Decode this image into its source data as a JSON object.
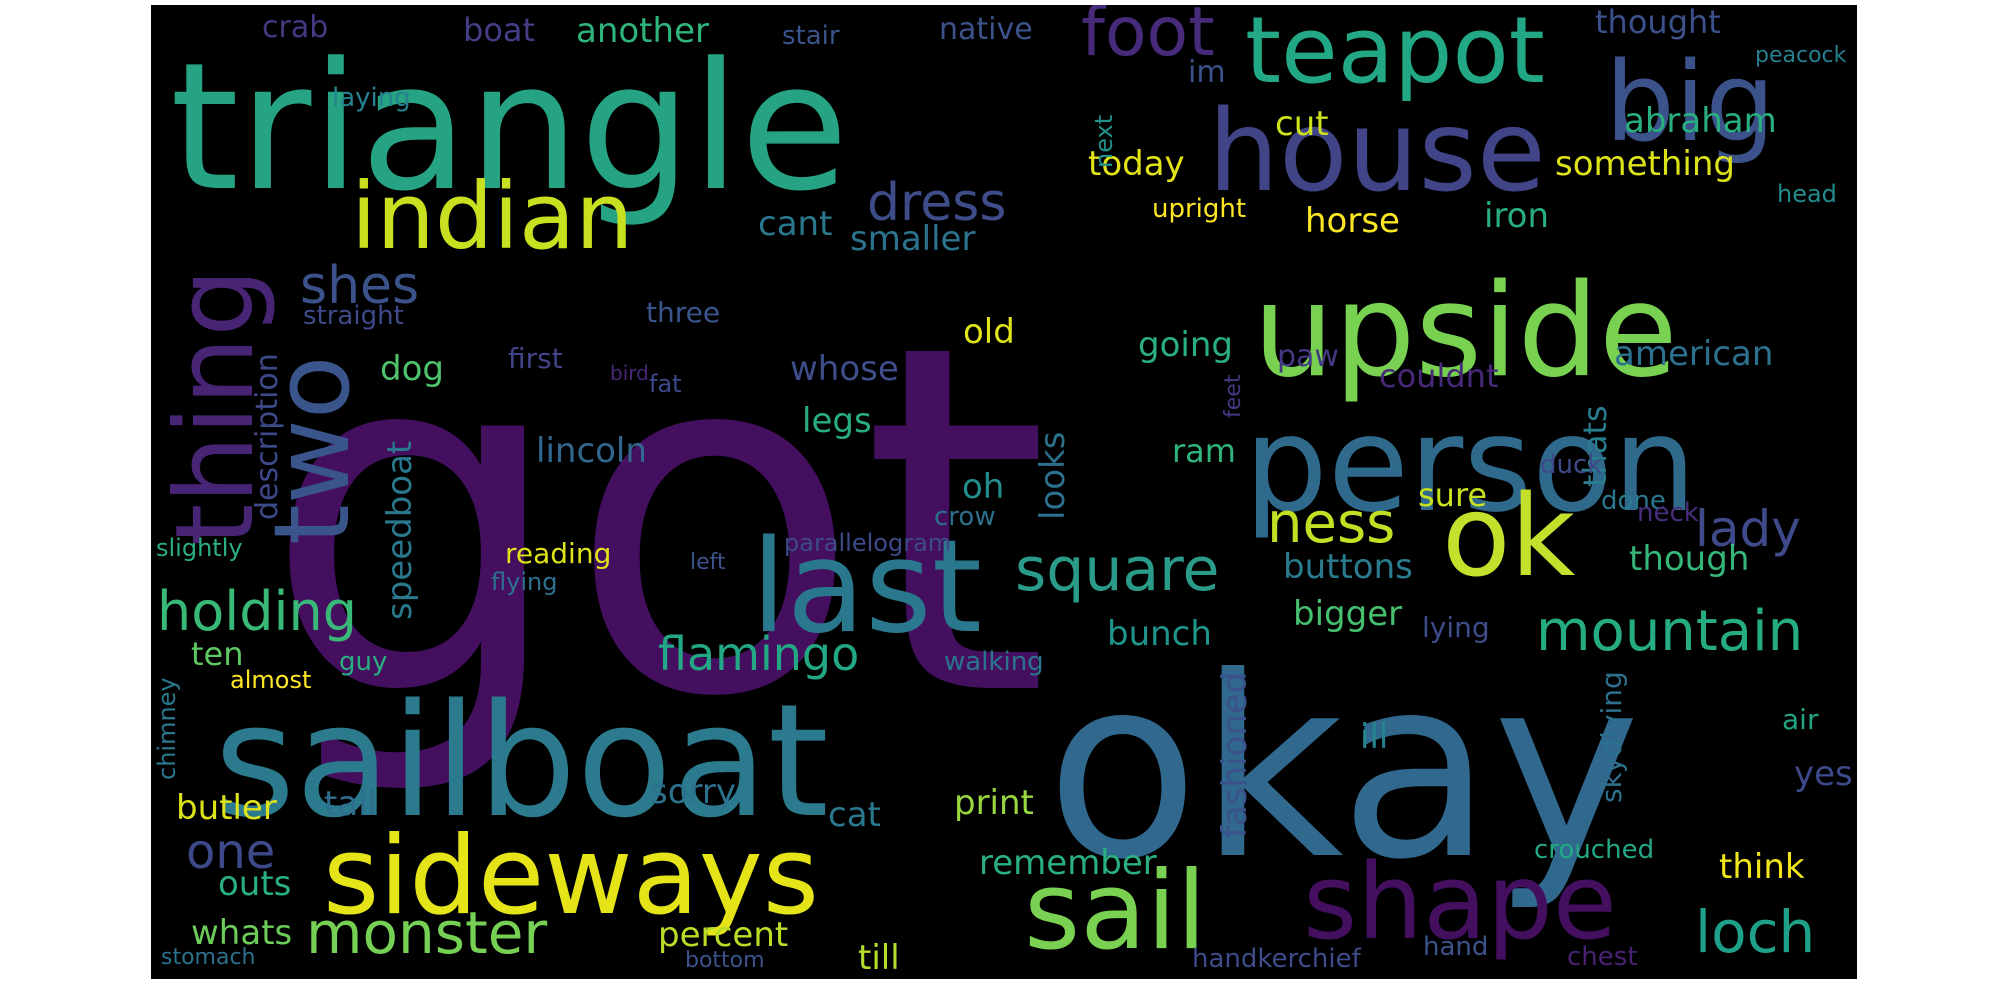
{
  "words": [
    {
      "text": "got",
      "color": "#440f5f"
    },
    {
      "text": "okay",
      "color": "#30688e"
    },
    {
      "text": "triangle",
      "color": "#25a383"
    },
    {
      "text": "sailboat",
      "color": "#2b7a8e"
    },
    {
      "text": "upside",
      "color": "#78d151"
    },
    {
      "text": "person",
      "color": "#2f6a8d"
    },
    {
      "text": "sideways",
      "color": "#e4e418"
    },
    {
      "text": "house",
      "color": "#414487"
    },
    {
      "text": "teapot",
      "color": "#22a884"
    },
    {
      "text": "ok",
      "color": "#c4e02d"
    },
    {
      "text": "last",
      "color": "#2a788e"
    },
    {
      "text": "indian",
      "color": "#c8e020"
    },
    {
      "text": "two",
      "color": "#3a548c"
    },
    {
      "text": "thing",
      "color": "#482474"
    },
    {
      "text": "big",
      "color": "#3b528b"
    },
    {
      "text": "shape",
      "color": "#440f5f"
    },
    {
      "text": "sail",
      "color": "#7ad151"
    },
    {
      "text": "foot",
      "color": "#472a7a"
    },
    {
      "text": "mountain",
      "color": "#25ac82"
    },
    {
      "text": "square",
      "color": "#2a9b88"
    },
    {
      "text": "holding",
      "color": "#38b977"
    },
    {
      "text": "ness",
      "color": "#c2df23"
    },
    {
      "text": "monster",
      "color": "#75d054"
    },
    {
      "text": "loch",
      "color": "#1fa088"
    },
    {
      "text": "lady",
      "color": "#3e4a89"
    },
    {
      "text": "dress",
      "color": "#3e4c8a"
    },
    {
      "text": "flamingo",
      "color": "#22a884"
    },
    {
      "text": "shes",
      "color": "#3b528b"
    },
    {
      "text": "one",
      "color": "#3e4989"
    },
    {
      "text": "something",
      "color": "#dde318"
    },
    {
      "text": "abraham",
      "color": "#29af7f"
    },
    {
      "text": "today",
      "color": "#e2e418"
    },
    {
      "text": "american",
      "color": "#2c718e"
    },
    {
      "text": "lincoln",
      "color": "#31678e"
    },
    {
      "text": "going",
      "color": "#2ab07f"
    },
    {
      "text": "buttons",
      "color": "#2a7b8e"
    },
    {
      "text": "whose",
      "color": "#3d4e8a"
    },
    {
      "text": "legs",
      "color": "#27ad81"
    },
    {
      "text": "old",
      "color": "#dfe318"
    },
    {
      "text": "smaller",
      "color": "#2c738e"
    },
    {
      "text": "bigger",
      "color": "#46c06f"
    },
    {
      "text": "bunch",
      "color": "#1f958b"
    },
    {
      "text": "though",
      "color": "#35b779"
    },
    {
      "text": "horse",
      "color": "#fde725"
    },
    {
      "text": "iron",
      "color": "#29af7f"
    },
    {
      "text": "thought",
      "color": "#3c508b"
    },
    {
      "text": "another",
      "color": "#2fb47c"
    },
    {
      "text": "boat",
      "color": "#433e85"
    },
    {
      "text": "crab",
      "color": "#443983"
    },
    {
      "text": "native",
      "color": "#3b528b"
    },
    {
      "text": "stair",
      "color": "#3a548c"
    },
    {
      "text": "peacock",
      "color": "#277f8e"
    },
    {
      "text": "laying",
      "color": "#26828e"
    },
    {
      "text": "next",
      "color": "#21918c"
    },
    {
      "text": "im",
      "color": "#3b528b"
    },
    {
      "text": "cut",
      "color": "#cde11d"
    },
    {
      "text": "upright",
      "color": "#fde725"
    },
    {
      "text": "head",
      "color": "#228c8d"
    },
    {
      "text": "cant",
      "color": "#2a788e"
    },
    {
      "text": "description",
      "color": "#3e4989"
    },
    {
      "text": "straight",
      "color": "#3e4a89"
    },
    {
      "text": "three",
      "color": "#3a548c"
    },
    {
      "text": "bird",
      "color": "#482777"
    },
    {
      "text": "first",
      "color": "#414487"
    },
    {
      "text": "fat",
      "color": "#3e4989"
    },
    {
      "text": "dog",
      "color": "#4ec36b"
    },
    {
      "text": "paw",
      "color": "#443983"
    },
    {
      "text": "couldnt",
      "color": "#482878"
    },
    {
      "text": "thats",
      "color": "#287d8e"
    },
    {
      "text": "feet",
      "color": "#453781"
    },
    {
      "text": "speedboat",
      "color": "#2a788e"
    },
    {
      "text": "looks",
      "color": "#2d708e"
    },
    {
      "text": "ram",
      "color": "#2fb47c"
    },
    {
      "text": "oh",
      "color": "#228d8d"
    },
    {
      "text": "sure",
      "color": "#cae11f"
    },
    {
      "text": "duck",
      "color": "#3e4a89"
    },
    {
      "text": "done",
      "color": "#2a788e"
    },
    {
      "text": "neck",
      "color": "#472d7b"
    },
    {
      "text": "crow",
      "color": "#2d708e"
    },
    {
      "text": "slightly",
      "color": "#2ab07f"
    },
    {
      "text": "reading",
      "color": "#dde318"
    },
    {
      "text": "left",
      "color": "#3b528b"
    },
    {
      "text": "parallelogram",
      "color": "#3e4a89"
    },
    {
      "text": "flying",
      "color": "#2c718e"
    },
    {
      "text": "ten",
      "color": "#5ec962"
    },
    {
      "text": "guy",
      "color": "#29af7f"
    },
    {
      "text": "almost",
      "color": "#fde725"
    },
    {
      "text": "walking",
      "color": "#2b748e"
    },
    {
      "text": "fashioned",
      "color": "#3b528b"
    },
    {
      "text": "lying",
      "color": "#3e4c8a"
    },
    {
      "text": "chimney",
      "color": "#2a788e"
    },
    {
      "text": "skydiving",
      "color": "#2d708e"
    },
    {
      "text": "ill",
      "color": "#25858e"
    },
    {
      "text": "yes",
      "color": "#3e4989"
    },
    {
      "text": "air",
      "color": "#21a585"
    },
    {
      "text": "butler",
      "color": "#dde318"
    },
    {
      "text": "tail",
      "color": "#2e6f8e"
    },
    {
      "text": "sorry",
      "color": "#2c728e"
    },
    {
      "text": "cat",
      "color": "#2a788e"
    },
    {
      "text": "print",
      "color": "#98d83e"
    },
    {
      "text": "remember",
      "color": "#2ab07f"
    },
    {
      "text": "crouched",
      "color": "#22a884"
    },
    {
      "text": "think",
      "color": "#f1e51d"
    },
    {
      "text": "outs",
      "color": "#2ab07f"
    },
    {
      "text": "whats",
      "color": "#6ccd5a"
    },
    {
      "text": "percent",
      "color": "#bade28"
    },
    {
      "text": "till",
      "color": "#b5de2b"
    },
    {
      "text": "stomach",
      "color": "#2c718e"
    },
    {
      "text": "bottom",
      "color": "#3b528b"
    },
    {
      "text": "handkerchief",
      "color": "#3e4c8a"
    },
    {
      "text": "hand",
      "color": "#3b528b"
    },
    {
      "text": "chest",
      "color": "#482173"
    }
  ]
}
